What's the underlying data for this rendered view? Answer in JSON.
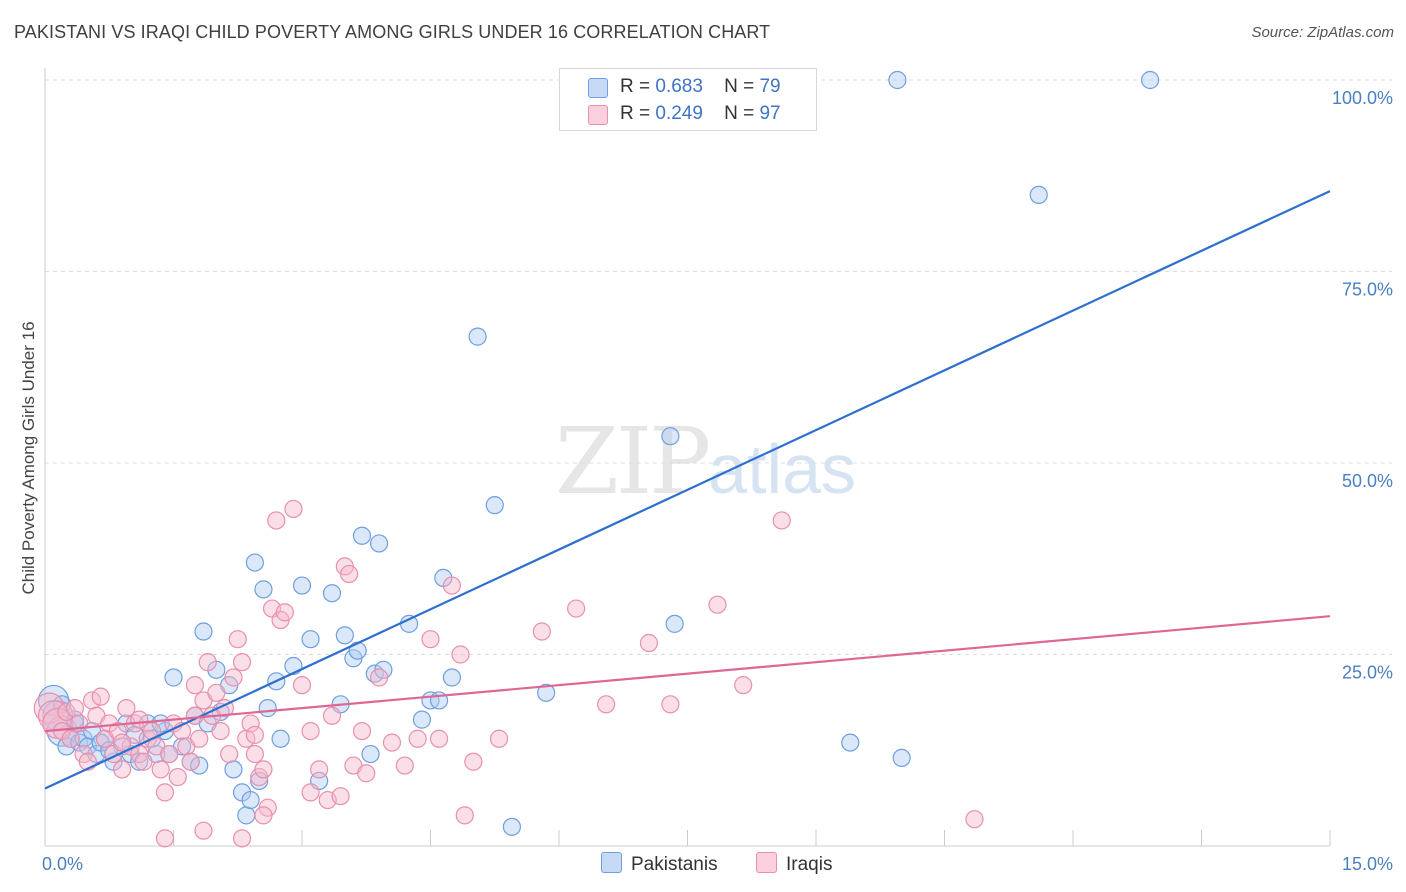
{
  "title": "PAKISTANI VS IRAQI CHILD POVERTY AMONG GIRLS UNDER 16 CORRELATION CHART",
  "source": "Source: ZipAtlas.com",
  "watermark": {
    "zip": "ZIP",
    "atlas": "atlas"
  },
  "legend": {
    "rows": [
      {
        "r_label": "R =",
        "r_value": "0.683",
        "n_label": "N =",
        "n_value": "79",
        "color": "#aecbf1"
      },
      {
        "r_label": "R =",
        "r_value": "0.249",
        "n_label": "N =",
        "n_value": "97",
        "color": "#f6b8cc"
      }
    ]
  },
  "bottom_legend": [
    "Pakistanis",
    "Iraqis"
  ],
  "chart_data": {
    "type": "scatter",
    "title": "PAKISTANI VS IRAQI CHILD POVERTY AMONG GIRLS UNDER 16 CORRELATION CHART",
    "xlabel": "",
    "ylabel": "Child Poverty Among Girls Under 16",
    "xlim": [
      0,
      15
    ],
    "ylim": [
      0,
      100
    ],
    "x_tick_labels": [
      "0.0%",
      "15.0%"
    ],
    "y_tick_values": [
      25,
      50,
      75,
      100
    ],
    "y_tick_labels": [
      "25.0%",
      "50.0%",
      "75.0%",
      "100.0%"
    ],
    "grid": true,
    "legend_position": "top-center",
    "series": [
      {
        "name": "Pakistanis",
        "color": "#6f9fe0",
        "fill": "#aecbf1",
        "trend": {
          "x": [
            0,
            15
          ],
          "y": [
            7.5,
            85.5
          ],
          "color": "#2d6fcf"
        },
        "points": [
          [
            0.1,
            19
          ],
          [
            0.15,
            17
          ],
          [
            0.2,
            15
          ],
          [
            0.25,
            13
          ],
          [
            0.3,
            14
          ],
          [
            0.35,
            16
          ],
          [
            0.4,
            13.5
          ],
          [
            0.45,
            14
          ],
          [
            0.5,
            13
          ],
          [
            0.55,
            15
          ],
          [
            0.6,
            12
          ],
          [
            0.7,
            14
          ],
          [
            0.8,
            11
          ],
          [
            0.9,
            13
          ],
          [
            0.95,
            16
          ],
          [
            1.0,
            12
          ],
          [
            1.1,
            11
          ],
          [
            1.2,
            16
          ],
          [
            1.25,
            14
          ],
          [
            1.3,
            12
          ],
          [
            1.4,
            15
          ],
          [
            1.5,
            22
          ],
          [
            1.6,
            13
          ],
          [
            1.7,
            11
          ],
          [
            1.75,
            17
          ],
          [
            1.8,
            10.5
          ],
          [
            1.85,
            28
          ],
          [
            2.0,
            23
          ],
          [
            2.05,
            17.5
          ],
          [
            2.2,
            10
          ],
          [
            2.3,
            7
          ],
          [
            2.35,
            4
          ],
          [
            2.4,
            6
          ],
          [
            2.45,
            37
          ],
          [
            2.5,
            8.5
          ],
          [
            2.55,
            33.5
          ],
          [
            2.6,
            18
          ],
          [
            2.7,
            21.5
          ],
          [
            2.75,
            14
          ],
          [
            2.9,
            23.5
          ],
          [
            3.0,
            34
          ],
          [
            3.1,
            27
          ],
          [
            3.2,
            8.5
          ],
          [
            3.35,
            33
          ],
          [
            3.45,
            18.5
          ],
          [
            3.5,
            27.5
          ],
          [
            3.6,
            24.5
          ],
          [
            3.65,
            25.5
          ],
          [
            3.7,
            40.5
          ],
          [
            3.8,
            12
          ],
          [
            3.85,
            22.5
          ],
          [
            3.9,
            39.5
          ],
          [
            3.95,
            23
          ],
          [
            4.25,
            29
          ],
          [
            4.4,
            16.5
          ],
          [
            4.5,
            19
          ],
          [
            4.6,
            19
          ],
          [
            4.65,
            35
          ],
          [
            4.75,
            22
          ],
          [
            5.05,
            66.5
          ],
          [
            5.25,
            44.5
          ],
          [
            5.45,
            2.5
          ],
          [
            5.85,
            20
          ],
          [
            7.3,
            53.5
          ],
          [
            7.35,
            29
          ],
          [
            9.4,
            13.5
          ],
          [
            10.0,
            11.5
          ],
          [
            9.95,
            100
          ],
          [
            11.6,
            85
          ],
          [
            12.9,
            100
          ],
          [
            0.2,
            18.5
          ],
          [
            0.65,
            13.5
          ],
          [
            1.05,
            14.5
          ],
          [
            1.45,
            12
          ],
          [
            1.9,
            16
          ],
          [
            2.15,
            21
          ],
          [
            0.35,
            16.5
          ],
          [
            0.75,
            12.5
          ],
          [
            1.35,
            16
          ]
        ]
      },
      {
        "name": "Iraqis",
        "color": "#e890ac",
        "fill": "#f6b8cc",
        "trend": {
          "x": [
            0,
            15
          ],
          "y": [
            15,
            30
          ],
          "color": "#e06693"
        },
        "points": [
          [
            0.05,
            18
          ],
          [
            0.1,
            17
          ],
          [
            0.15,
            16
          ],
          [
            0.2,
            15
          ],
          [
            0.25,
            17.5
          ],
          [
            0.3,
            14
          ],
          [
            0.35,
            18
          ],
          [
            0.4,
            16
          ],
          [
            0.45,
            12
          ],
          [
            0.5,
            11
          ],
          [
            0.55,
            19
          ],
          [
            0.6,
            17
          ],
          [
            0.7,
            14
          ],
          [
            0.75,
            16
          ],
          [
            0.8,
            12
          ],
          [
            0.85,
            15
          ],
          [
            0.9,
            10
          ],
          [
            0.95,
            18
          ],
          [
            1.0,
            13
          ],
          [
            1.05,
            16
          ],
          [
            1.1,
            12
          ],
          [
            1.15,
            11
          ],
          [
            1.2,
            14
          ],
          [
            1.25,
            15
          ],
          [
            1.3,
            13
          ],
          [
            1.35,
            10
          ],
          [
            1.4,
            7
          ],
          [
            1.45,
            12
          ],
          [
            1.5,
            16
          ],
          [
            1.55,
            9
          ],
          [
            1.6,
            15
          ],
          [
            1.65,
            13
          ],
          [
            1.7,
            11
          ],
          [
            1.75,
            17
          ],
          [
            1.8,
            14
          ],
          [
            1.85,
            19
          ],
          [
            1.9,
            24
          ],
          [
            1.95,
            17
          ],
          [
            2.0,
            20
          ],
          [
            2.05,
            15
          ],
          [
            2.1,
            18
          ],
          [
            2.15,
            12
          ],
          [
            2.2,
            22
          ],
          [
            2.25,
            27
          ],
          [
            2.3,
            24
          ],
          [
            2.35,
            14
          ],
          [
            2.4,
            16
          ],
          [
            2.45,
            12
          ],
          [
            2.5,
            9
          ],
          [
            2.55,
            10
          ],
          [
            2.6,
            5
          ],
          [
            2.65,
            31
          ],
          [
            2.7,
            42.5
          ],
          [
            2.75,
            29.5
          ],
          [
            2.8,
            30.5
          ],
          [
            2.9,
            44
          ],
          [
            3.0,
            21
          ],
          [
            3.1,
            15
          ],
          [
            3.2,
            10
          ],
          [
            3.3,
            6
          ],
          [
            3.35,
            17
          ],
          [
            3.45,
            6.5
          ],
          [
            3.5,
            36.5
          ],
          [
            3.55,
            35.5
          ],
          [
            3.6,
            10.5
          ],
          [
            3.7,
            15
          ],
          [
            3.75,
            9.5
          ],
          [
            3.9,
            22
          ],
          [
            4.05,
            13.5
          ],
          [
            4.2,
            10.5
          ],
          [
            4.35,
            14
          ],
          [
            4.5,
            27
          ],
          [
            4.6,
            14
          ],
          [
            4.75,
            34
          ],
          [
            4.9,
            4
          ],
          [
            5.0,
            11
          ],
          [
            5.3,
            14
          ],
          [
            5.8,
            28
          ],
          [
            6.2,
            31
          ],
          [
            6.55,
            18.5
          ],
          [
            7.05,
            26.5
          ],
          [
            7.3,
            18.5
          ],
          [
            7.85,
            31.5
          ],
          [
            8.15,
            21
          ],
          [
            8.6,
            42.5
          ],
          [
            10.85,
            3.5
          ],
          [
            1.4,
            1
          ],
          [
            1.85,
            2
          ],
          [
            2.3,
            1
          ],
          [
            0.65,
            19.5
          ],
          [
            1.1,
            16.5
          ],
          [
            2.55,
            4
          ],
          [
            3.1,
            7
          ],
          [
            4.85,
            25
          ],
          [
            2.45,
            14.5
          ],
          [
            1.75,
            21
          ],
          [
            0.9,
            13.5
          ]
        ]
      }
    ]
  }
}
